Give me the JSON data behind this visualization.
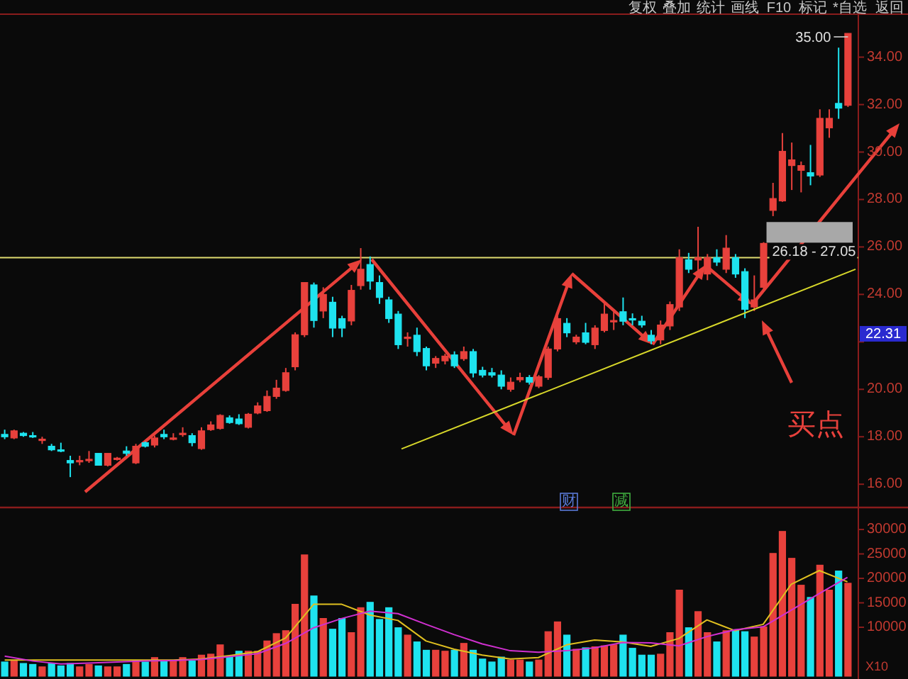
{
  "chart_data": [
    {
      "type": "candlestick",
      "categories": [
        null,
        null,
        null,
        null,
        null,
        null,
        null,
        null,
        null,
        null,
        null,
        null,
        null,
        null,
        null,
        null,
        null,
        null,
        null,
        null,
        null,
        null,
        null,
        null,
        null,
        null,
        null,
        null,
        null,
        null,
        null,
        null,
        null,
        null,
        null,
        null,
        null,
        null,
        null,
        null,
        null,
        null,
        null,
        null,
        null,
        null,
        null,
        null,
        null,
        null,
        null,
        null,
        null,
        null,
        null,
        null,
        null,
        null,
        null,
        null,
        null,
        null,
        null,
        null,
        null,
        null,
        null,
        null,
        null,
        null,
        null,
        null,
        null,
        null,
        null,
        null,
        null,
        null,
        null,
        null,
        null,
        null,
        null,
        null,
        null,
        null,
        null,
        null,
        null,
        null,
        null
      ],
      "ohlc": [
        [
          18.1,
          18.3,
          17.9,
          18.0
        ],
        [
          17.95,
          18.3,
          17.9,
          18.25
        ],
        [
          18.15,
          18.2,
          18.0,
          18.05
        ],
        [
          18.05,
          18.2,
          17.95,
          18.0
        ],
        [
          17.85,
          18.0,
          17.7,
          17.9
        ],
        [
          17.6,
          17.7,
          17.4,
          17.45
        ],
        [
          17.45,
          17.75,
          17.35,
          17.4
        ],
        [
          17.0,
          17.2,
          16.3,
          16.9
        ],
        [
          16.95,
          17.2,
          16.8,
          17.0
        ],
        [
          17.0,
          17.4,
          16.9,
          17.05
        ],
        [
          17.3,
          17.3,
          16.8,
          16.8
        ],
        [
          16.8,
          17.3,
          16.75,
          17.3
        ],
        [
          17.05,
          17.15,
          17.0,
          17.1
        ],
        [
          17.4,
          17.6,
          17.2,
          17.3
        ],
        [
          16.9,
          17.7,
          16.85,
          17.6
        ],
        [
          17.75,
          17.8,
          17.55,
          17.6
        ],
        [
          17.65,
          18.05,
          17.55,
          17.95
        ],
        [
          18.1,
          18.3,
          17.9,
          18.0
        ],
        [
          17.95,
          18.15,
          17.85,
          17.95
        ],
        [
          18.1,
          18.4,
          18.0,
          18.15
        ],
        [
          18.05,
          18.15,
          17.6,
          17.75
        ],
        [
          17.5,
          18.4,
          17.45,
          18.25
        ],
        [
          18.3,
          18.65,
          18.25,
          18.5
        ],
        [
          18.35,
          18.95,
          18.3,
          18.9
        ],
        [
          18.8,
          18.9,
          18.55,
          18.6
        ],
        [
          18.75,
          18.95,
          18.5,
          18.55
        ],
        [
          18.4,
          19.0,
          18.35,
          18.95
        ],
        [
          19.0,
          19.45,
          18.95,
          19.3
        ],
        [
          19.1,
          19.95,
          19.05,
          19.7
        ],
        [
          19.7,
          20.4,
          19.6,
          20.05
        ],
        [
          19.95,
          20.9,
          19.9,
          20.7
        ],
        [
          20.95,
          22.4,
          20.8,
          22.3
        ],
        [
          22.3,
          24.5,
          22.2,
          24.5
        ],
        [
          24.4,
          24.5,
          22.6,
          22.9
        ],
        [
          23.3,
          24.3,
          23.0,
          24.0
        ],
        [
          23.67,
          23.9,
          22.2,
          22.58
        ],
        [
          22.98,
          23.1,
          22.2,
          22.58
        ],
        [
          22.88,
          24.4,
          22.7,
          24.17
        ],
        [
          24.37,
          25.95,
          24.2,
          25.06
        ],
        [
          25.26,
          25.6,
          24.2,
          24.56
        ],
        [
          24.5,
          24.8,
          23.6,
          23.87
        ],
        [
          23.77,
          23.9,
          22.8,
          22.98
        ],
        [
          23.17,
          23.3,
          21.7,
          21.88
        ],
        [
          22.17,
          22.4,
          21.8,
          22.2
        ],
        [
          22.28,
          22.6,
          21.4,
          21.59
        ],
        [
          21.72,
          21.8,
          20.8,
          20.99
        ],
        [
          21.1,
          21.4,
          20.9,
          21.3
        ],
        [
          21.2,
          21.5,
          21.05,
          21.4
        ],
        [
          21.45,
          21.6,
          20.9,
          20.99
        ],
        [
          21.29,
          21.8,
          21.2,
          21.59
        ],
        [
          21.59,
          21.7,
          20.5,
          20.69
        ],
        [
          20.8,
          20.95,
          20.5,
          20.6
        ],
        [
          20.7,
          20.9,
          20.5,
          20.6
        ],
        [
          20.6,
          20.8,
          20.0,
          20.13
        ],
        [
          20.0,
          20.5,
          19.9,
          20.3
        ],
        [
          20.4,
          20.7,
          20.3,
          20.5
        ],
        [
          20.5,
          20.6,
          20.2,
          20.3
        ],
        [
          20.13,
          20.6,
          20.05,
          20.53
        ],
        [
          20.5,
          21.8,
          20.4,
          21.7
        ],
        [
          21.7,
          23.1,
          21.6,
          22.98
        ],
        [
          22.78,
          23.0,
          22.2,
          22.38
        ],
        [
          22.0,
          22.3,
          21.9,
          22.2
        ],
        [
          22.38,
          22.8,
          21.9,
          21.98
        ],
        [
          21.88,
          22.7,
          21.7,
          22.58
        ],
        [
          22.48,
          23.67,
          22.4,
          23.17
        ],
        [
          22.86,
          23.3,
          22.5,
          22.9
        ],
        [
          23.27,
          23.87,
          22.7,
          22.87
        ],
        [
          22.98,
          23.2,
          22.7,
          22.97
        ],
        [
          22.87,
          23.1,
          22.6,
          22.71
        ],
        [
          22.28,
          22.5,
          21.9,
          22.04
        ],
        [
          22.08,
          22.9,
          21.9,
          22.71
        ],
        [
          22.67,
          23.7,
          22.5,
          23.57
        ],
        [
          23.47,
          25.9,
          23.3,
          25.55
        ],
        [
          25.46,
          25.75,
          24.9,
          25.06
        ],
        [
          25.45,
          26.85,
          24.86,
          25.55
        ],
        [
          24.86,
          25.7,
          24.6,
          25.55
        ],
        [
          25.55,
          25.9,
          25.2,
          25.36
        ],
        [
          25.06,
          26.5,
          24.9,
          25.95
        ],
        [
          25.55,
          25.7,
          24.7,
          24.86
        ],
        [
          24.96,
          25.1,
          23.0,
          23.37
        ],
        [
          23.47,
          24.8,
          23.3,
          23.77
        ],
        [
          24.3,
          26.2,
          24.2,
          26.15
        ],
        [
          27.54,
          28.7,
          27.3,
          28.04
        ],
        [
          27.94,
          30.8,
          27.9,
          30.03
        ],
        [
          29.43,
          30.4,
          28.4,
          29.67
        ],
        [
          29.23,
          29.6,
          28.3,
          29.43
        ],
        [
          29.13,
          30.3,
          28.6,
          28.99
        ],
        [
          29.03,
          31.8,
          28.95,
          31.42
        ],
        [
          31.02,
          31.8,
          30.6,
          31.42
        ],
        [
          32.05,
          34.4,
          31.4,
          31.85
        ],
        [
          31.97,
          35.0,
          31.9,
          35.0
        ]
      ],
      "ylim": [
        15.02,
        35.81
      ],
      "yticks": [
        {
          "value": 16,
          "label": "16.00"
        },
        {
          "value": 18,
          "label": "18.00"
        },
        {
          "value": 20,
          "label": "20.00"
        },
        {
          "value": 22,
          "label": null
        },
        {
          "value": 24,
          "label": "24.00"
        },
        {
          "value": 26,
          "label": "26.00"
        },
        {
          "value": 28,
          "label": "28.00"
        },
        {
          "value": 30,
          "label": "30.00"
        },
        {
          "value": 32,
          "label": "32.00"
        },
        {
          "value": 34,
          "label": "34.00"
        }
      ],
      "tick_labels": "y",
      "ref_lines": [
        {
          "axis": "y",
          "value": 25.55,
          "color": "#e0dc70"
        }
      ],
      "bands": [
        {
          "axis": "y",
          "from": 26.18,
          "to": 27.05,
          "label": "26.18 - 27.05",
          "color": "#a8a8a8"
        }
      ],
      "annotations": [
        "复权",
        "叠加",
        "统计",
        "画线",
        "F10",
        "标记",
        "*自选",
        "返回",
        "35.00",
        {
          "text": "22.31",
          "y": 22.31
        },
        "买点",
        "财",
        "减"
      ]
    },
    {
      "type": "line",
      "categories": [
        null,
        null
      ],
      "values": [
        17.49,
        25.06
      ],
      "color": "#d8d82a",
      "ylim": [
        15.02,
        35.81
      ],
      "tick_labels": false
    },
    {
      "type": "bar",
      "categories": [
        null,
        null,
        null,
        null,
        null,
        null,
        null,
        null,
        null,
        null,
        null,
        null,
        null,
        null,
        null,
        null,
        null,
        null,
        null,
        null,
        null,
        null,
        null,
        null,
        null,
        null,
        null,
        null,
        null,
        null,
        null,
        null,
        null,
        null,
        null,
        null,
        null,
        null,
        null,
        null,
        null,
        null,
        null,
        null,
        null,
        null,
        null,
        null,
        null,
        null,
        null,
        null,
        null,
        null,
        null,
        null,
        null,
        null,
        null,
        null,
        null,
        null,
        null,
        null,
        null,
        null,
        null,
        null,
        null,
        null,
        null,
        null,
        null,
        null,
        null,
        null,
        null,
        null,
        null,
        null,
        null,
        null,
        null,
        null,
        null,
        null,
        null,
        null,
        null,
        null,
        null
      ],
      "values": [
        2900,
        3100,
        2600,
        2400,
        1900,
        2600,
        2100,
        2600,
        1900,
        2400,
        2100,
        1900,
        1900,
        2400,
        3100,
        2900,
        3800,
        3100,
        3100,
        3800,
        3100,
        4300,
        4500,
        6400,
        4100,
        5100,
        5100,
        5100,
        7200,
        8700,
        9300,
        14700,
        24800,
        16400,
        11800,
        9600,
        11800,
        8900,
        14000,
        15100,
        11600,
        14000,
        9900,
        8400,
        7000,
        5300,
        5300,
        5100,
        5300,
        6700,
        5300,
        3500,
        2900,
        3900,
        3300,
        3300,
        2900,
        3300,
        9100,
        11100,
        8400,
        5500,
        5800,
        6000,
        6200,
        6400,
        8400,
        5700,
        4300,
        4300,
        4500,
        8900,
        17600,
        9900,
        13200,
        8900,
        7000,
        9300,
        9500,
        9100,
        8000,
        10100,
        25100,
        29600,
        24100,
        18600,
        16100,
        22700,
        17600,
        21500,
        19000
      ],
      "colors": [
        "#1ee3ef",
        "#e8413c",
        "#1ee3ef",
        "#1ee3ef",
        "#e8413c",
        "#1ee3ef",
        "#1ee3ef",
        "#1ee3ef",
        "#e8413c",
        "#e8413c",
        "#1ee3ef",
        "#e8413c",
        "#e8413c",
        "#1ee3ef",
        "#e8413c",
        "#1ee3ef",
        "#e8413c",
        "#1ee3ef",
        "#e8413c",
        "#e8413c",
        "#1ee3ef",
        "#e8413c",
        "#e8413c",
        "#e8413c",
        "#1ee3ef",
        "#1ee3ef",
        "#e8413c",
        "#e8413c",
        "#e8413c",
        "#e8413c",
        "#e8413c",
        "#e8413c",
        "#e8413c",
        "#1ee3ef",
        "#e8413c",
        "#1ee3ef",
        "#1ee3ef",
        "#e8413c",
        "#e8413c",
        "#1ee3ef",
        "#1ee3ef",
        "#1ee3ef",
        "#1ee3ef",
        "#e8413c",
        "#1ee3ef",
        "#1ee3ef",
        "#e8413c",
        "#e8413c",
        "#1ee3ef",
        "#e8413c",
        "#1ee3ef",
        "#1ee3ef",
        "#1ee3ef",
        "#1ee3ef",
        "#e8413c",
        "#e8413c",
        "#1ee3ef",
        "#e8413c",
        "#e8413c",
        "#e8413c",
        "#1ee3ef",
        "#e8413c",
        "#1ee3ef",
        "#e8413c",
        "#e8413c",
        "#e8413c",
        "#1ee3ef",
        "#1ee3ef",
        "#1ee3ef",
        "#1ee3ef",
        "#e8413c",
        "#e8413c",
        "#e8413c",
        "#1ee3ef",
        "#e8413c",
        "#e8413c",
        "#1ee3ef",
        "#e8413c",
        "#1ee3ef",
        "#1ee3ef",
        "#e8413c",
        "#e8413c",
        "#e8413c",
        "#e8413c",
        "#e8413c",
        "#e8413c",
        "#1ee3ef",
        "#e8413c",
        "#e8413c",
        "#1ee3ef",
        "#e8413c"
      ],
      "ylim": [
        0,
        34500
      ],
      "yticks": [
        10000,
        15000,
        20000,
        25000,
        30000
      ],
      "tick_labels": "y",
      "annotations": [
        "X10"
      ]
    },
    {
      "type": "line",
      "categories": [
        null,
        null,
        null,
        null,
        null,
        null,
        null,
        null,
        null,
        null,
        null,
        null,
        null,
        null,
        null,
        null,
        null,
        null,
        null,
        null,
        null,
        null,
        null,
        null,
        null,
        null,
        null,
        null,
        null,
        null,
        null
      ],
      "values": [
        3300,
        3300,
        3300,
        3300,
        3300,
        3300,
        3300,
        3500,
        4200,
        5000,
        7800,
        14700,
        14700,
        12500,
        11400,
        7200,
        5500,
        4300,
        3500,
        3800,
        6400,
        7400,
        7000,
        6100,
        7700,
        11500,
        9300,
        10600,
        18800,
        21600,
        19300
      ],
      "color": "#e0c020",
      "ylim": [
        0,
        34500
      ],
      "tick_labels": false
    },
    {
      "type": "line",
      "categories": [
        null,
        null,
        null,
        null,
        null,
        null,
        null,
        null,
        null,
        null,
        null,
        null,
        null,
        null,
        null,
        null,
        null,
        null,
        null,
        null,
        null,
        null,
        null,
        null,
        null,
        null,
        null,
        null,
        null,
        null,
        null
      ],
      "values": [
        4100,
        3100,
        2500,
        2700,
        2900,
        3100,
        3200,
        3400,
        4000,
        4600,
        6700,
        9900,
        11800,
        13300,
        12800,
        10600,
        8500,
        6600,
        5200,
        4900,
        5200,
        5800,
        6900,
        6800,
        6200,
        8100,
        9500,
        10100,
        13500,
        16900,
        20200
      ],
      "color": "#d030d0",
      "ylim": [
        0,
        34500
      ],
      "tick_labels": false
    }
  ]
}
